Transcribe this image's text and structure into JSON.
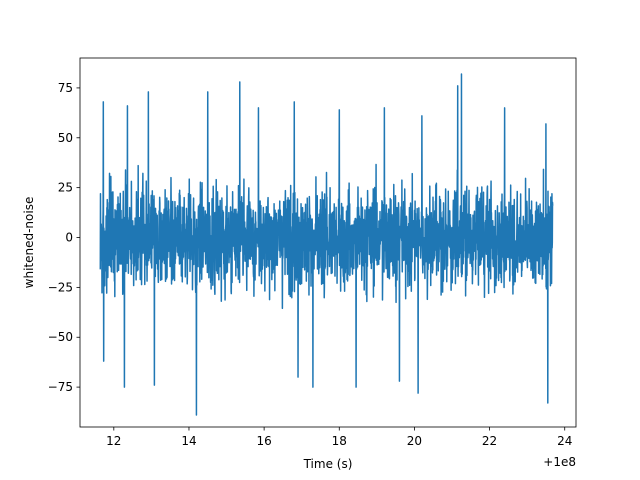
{
  "chart_data": {
    "type": "line",
    "title": "",
    "xlabel": "Time (s)",
    "ylabel": "whitened-noise",
    "x_offset_label": "+1e8",
    "xlim": [
      11.1,
      24.3
    ],
    "ylim": [
      -95,
      90
    ],
    "xticks": [
      12,
      14,
      16,
      18,
      20,
      22,
      24
    ],
    "yticks": [
      -75,
      -50,
      -25,
      0,
      25,
      50,
      75
    ],
    "x_tick_labels": [
      "12",
      "14",
      "16",
      "18",
      "20",
      "22",
      "24"
    ],
    "y_tick_labels": [
      "−75",
      "−50",
      "−25",
      "0",
      "25",
      "50",
      "75"
    ],
    "grid": false,
    "legend": "none",
    "colors": {
      "line": "#1f77b4"
    },
    "series": [
      {
        "x_range": [
          11.64,
          23.68
        ],
        "typical_envelope": [
          -43,
          45
        ],
        "peaks": [
          {
            "x": 11.72,
            "y": 68
          },
          {
            "x": 11.73,
            "y": -62
          },
          {
            "x": 12.36,
            "y": 66
          },
          {
            "x": 12.28,
            "y": -75
          },
          {
            "x": 12.92,
            "y": 73
          },
          {
            "x": 13.08,
            "y": -74
          },
          {
            "x": 14.2,
            "y": -89
          },
          {
            "x": 14.5,
            "y": 73
          },
          {
            "x": 15.35,
            "y": 78
          },
          {
            "x": 15.85,
            "y": 65
          },
          {
            "x": 16.8,
            "y": 68
          },
          {
            "x": 16.9,
            "y": -70
          },
          {
            "x": 17.3,
            "y": -75
          },
          {
            "x": 18.0,
            "y": 64
          },
          {
            "x": 18.45,
            "y": -75
          },
          {
            "x": 19.2,
            "y": 65
          },
          {
            "x": 19.6,
            "y": -72
          },
          {
            "x": 20.1,
            "y": -78
          },
          {
            "x": 20.2,
            "y": 61
          },
          {
            "x": 21.15,
            "y": 76
          },
          {
            "x": 21.25,
            "y": 82
          },
          {
            "x": 22.4,
            "y": 65
          },
          {
            "x": 23.5,
            "y": 57
          },
          {
            "x": 23.55,
            "y": -83
          }
        ]
      }
    ]
  }
}
